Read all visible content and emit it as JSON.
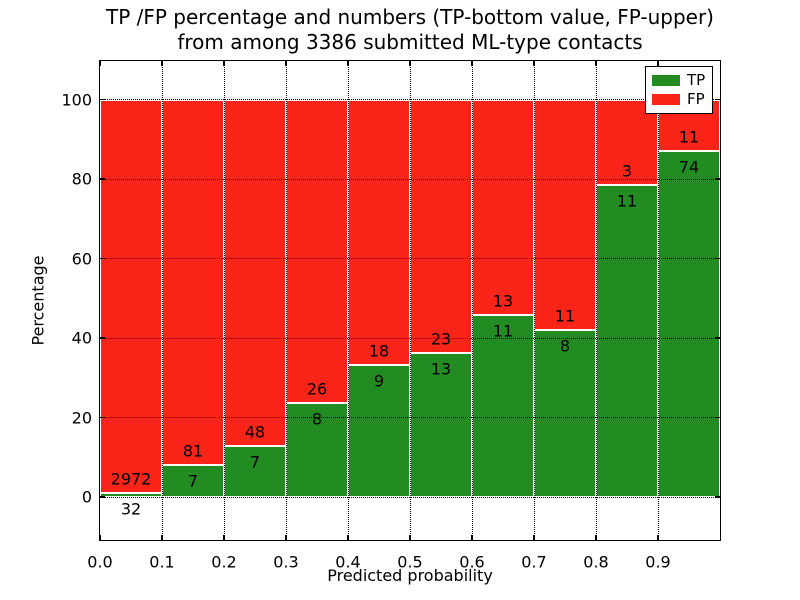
{
  "chart_data": {
    "type": "bar",
    "stacked": true,
    "title_lines": [
      "TP /FP percentage and numbers (TP-bottom value, FP-upper)",
      "from among 3386 submitted ML-type contacts"
    ],
    "xlabel": "Predicted probability",
    "ylabel": "Percentage",
    "total_contacts": 3386,
    "xlim": [
      0.0,
      1.0
    ],
    "ylim": [
      -11,
      110
    ],
    "grid": true,
    "grid_style": "dotted",
    "bin_edges": [
      0.0,
      0.1,
      0.2,
      0.3,
      0.4,
      0.5,
      0.6,
      0.7,
      0.8,
      0.9,
      1.0
    ],
    "x_ticks": {
      "values": [
        0.0,
        0.1,
        0.2,
        0.3,
        0.4,
        0.5,
        0.6,
        0.7,
        0.8,
        0.9
      ],
      "labels": [
        "0.0",
        "0.1",
        "0.2",
        "0.3",
        "0.4",
        "0.5",
        "0.6",
        "0.7",
        "0.8",
        "0.9"
      ]
    },
    "y_ticks": {
      "values": [
        0,
        20,
        40,
        60,
        80,
        100
      ],
      "labels": [
        "0",
        "20",
        "40",
        "60",
        "80",
        "100"
      ]
    },
    "series": [
      {
        "name": "TP",
        "color": "#228b22",
        "counts": [
          32,
          7,
          7,
          8,
          9,
          13,
          11,
          8,
          11,
          74
        ]
      },
      {
        "name": "FP",
        "color": "#fa2418",
        "counts": [
          2972,
          81,
          48,
          26,
          18,
          23,
          13,
          11,
          3,
          11
        ]
      }
    ],
    "tp_percent_of_bin": [
      1.1,
      8.0,
      12.7,
      23.5,
      33.3,
      36.1,
      45.8,
      42.1,
      78.6,
      87.1
    ],
    "legend": {
      "position": "upper right",
      "entries": [
        "TP",
        "FP"
      ]
    },
    "colors": {
      "tp": "#228b22",
      "fp": "#fa2418",
      "grid": "#000000",
      "bar_edge": "#ffffff"
    }
  }
}
